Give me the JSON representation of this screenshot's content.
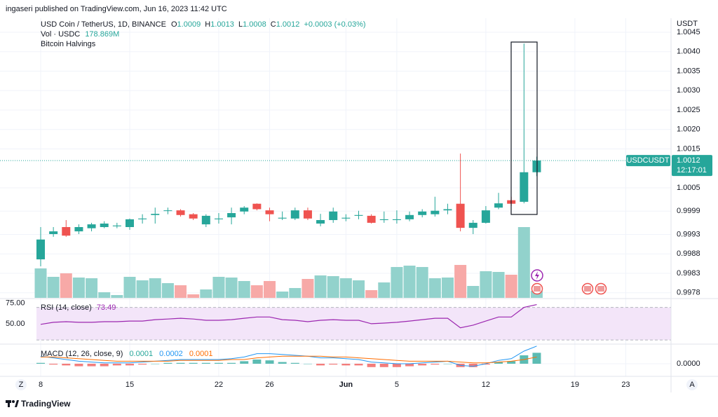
{
  "header": "ingaseri published on TradingView.com, Jun 16, 2023 11:42 UTC",
  "brand": "TradingView",
  "scale_buttons": [
    "Z",
    "A"
  ],
  "chart_data": [
    {
      "type": "candlestick",
      "title": "USD Coin / TetherUS, 1D, BINANCE",
      "ohlc_labels": [
        {
          "label": "O",
          "value": 1.0009
        },
        {
          "label": "H",
          "value": 1.0013
        },
        {
          "label": "L",
          "value": 1.0008
        },
        {
          "label": "C",
          "value": 1.0012
        }
      ],
      "change": "+0.0003 (+0.03%)",
      "volume_label": "Vol · USDC",
      "volume_value": "178.869M",
      "indicator": "Bitcoin Halvings",
      "y_unit": "USDT",
      "categories": [
        "8",
        null,
        null,
        null,
        null,
        null,
        null,
        "15",
        null,
        null,
        null,
        null,
        null,
        null,
        "22",
        null,
        null,
        null,
        "26",
        null,
        null,
        null,
        null,
        null,
        "Jun",
        null,
        null,
        null,
        "5",
        null,
        null,
        null,
        null,
        null,
        null,
        "12",
        null,
        null,
        null,
        null,
        null,
        null,
        "19",
        null,
        null,
        null,
        "23"
      ],
      "open": [
        0.99866,
        0.99931,
        0.99949,
        0.99938,
        0.99946,
        0.99949,
        0.99951,
        0.99949,
        0.99969,
        0.9998,
        0.99991,
        0.99992,
        0.99982,
        0.99956,
        0.99969,
        0.99974,
        0.99989,
        1.00009,
        0.99992,
        0.99971,
        0.99971,
        0.99992,
        0.99958,
        0.99967,
        0.99971,
        0.99978,
        0.99978,
        0.99967,
        0.99967,
        0.99969,
        0.9998,
        0.99982,
        0.99992,
        1.00009,
        0.99947,
        0.9996,
        0.99999,
        1.00018,
        1.00014,
        1.0009,
        null,
        null,
        null,
        null,
        null,
        null,
        null
      ],
      "high": [
        0.99949,
        0.99949,
        0.99967,
        0.99956,
        0.9996,
        0.99964,
        0.9996,
        0.99971,
        0.99982,
        0.99999,
        0.99999,
        0.99995,
        0.99985,
        0.99982,
        0.99985,
        0.99999,
        1.00003,
        1.0001,
        0.99999,
        0.99989,
        0.99999,
        0.99999,
        0.99983,
        0.99999,
        0.99982,
        0.99991,
        0.99982,
        0.99989,
        0.99992,
        0.99989,
        0.99995,
        1.00027,
        1.00009,
        1.00138,
        0.99967,
        1.00003,
        1.00037,
        1.00027,
        1.00421,
        1.0013,
        null,
        null,
        null,
        null,
        null,
        null,
        null
      ],
      "low": [
        0.99848,
        0.99924,
        0.99924,
        0.99931,
        0.99938,
        0.99946,
        0.99946,
        0.99942,
        0.99958,
        0.99958,
        0.99982,
        0.99976,
        0.99967,
        0.99949,
        0.99958,
        0.99956,
        0.99982,
        0.99992,
        0.99964,
        0.99967,
        0.99967,
        0.99967,
        0.99951,
        0.9996,
        0.99964,
        0.99969,
        0.99958,
        0.9996,
        0.99958,
        0.99964,
        0.99974,
        0.99976,
        0.99982,
        0.99938,
        0.99931,
        0.99958,
        0.99995,
        1.00003,
        1.0001,
        1.0008,
        null,
        null,
        null,
        null,
        null,
        null,
        null
      ],
      "close": [
        0.99917,
        0.99938,
        0.99927,
        0.99949,
        0.99956,
        0.99958,
        0.99953,
        0.99969,
        0.99971,
        0.99983,
        0.99992,
        0.9998,
        0.99971,
        0.99978,
        0.99971,
        0.99985,
        0.99999,
        0.99995,
        0.99982,
        0.99973,
        0.99992,
        0.99971,
        0.99967,
        0.99989,
        0.99973,
        0.9998,
        0.9996,
        0.99969,
        0.99969,
        0.9998,
        0.99989,
        0.99991,
        0.99995,
        0.99947,
        0.9996,
        0.99992,
        1.0001,
        1.00009,
        1.0009,
        1.0012,
        null,
        null,
        null,
        null,
        null,
        null,
        null
      ],
      "volume": [
        752,
        537,
        627,
        519,
        501,
        143,
        72,
        537,
        448,
        501,
        376,
        322,
        90,
        215,
        537,
        519,
        430,
        322,
        430,
        161,
        251,
        483,
        573,
        555,
        501,
        448,
        197,
        394,
        788,
        823,
        788,
        501,
        519,
        841,
        304,
        680,
        662,
        591,
        1808,
        178.869,
        null,
        null,
        null,
        null,
        null,
        null,
        null
      ],
      "up_color": "#26a69a",
      "down_color": "#ef5350",
      "volume_up_color": "#92d2cc",
      "volume_down_color": "#f7a9a7",
      "ylim": [
        0.99767,
        1.00486
      ],
      "yticks": [
        1.0045,
        {
          "value": 1.004,
          "label": "1.0040"
        },
        1.0035,
        {
          "value": 1.003,
          "label": "1.0030"
        },
        1.0025,
        {
          "value": 1.002,
          "label": "1.0020"
        },
        1.0015,
        1.0005,
        0.9999,
        0.9993,
        0.9988,
        0.9983,
        0.9978
      ],
      "grid": true,
      "last_price": {
        "label": "USDCUSDT",
        "value": 1.0012,
        "countdown": "12:17:01"
      }
    },
    {
      "type": "line",
      "title": "RSI (14, close)",
      "value_label": 73.49,
      "values": [
        49.2,
        51.7,
        52.5,
        51.7,
        51.7,
        52.5,
        52.5,
        53.3,
        53.3,
        55,
        55.8,
        56.7,
        55.8,
        54.2,
        54.2,
        55,
        56.7,
        58.3,
        58.3,
        55,
        54.2,
        52.5,
        54.2,
        55,
        54.2,
        54.2,
        50,
        50.8,
        51.7,
        53.3,
        55,
        56.7,
        56.7,
        45,
        48.3,
        53.3,
        58.3,
        58.3,
        70,
        73.49,
        null,
        null,
        null,
        null,
        null,
        null,
        null
      ],
      "color": "#9c27b0",
      "band": [
        30,
        70
      ],
      "band_color": "#f3e5f9",
      "ylim": [
        25,
        80
      ],
      "yticks": [
        {
          "value": 75,
          "label": "75.00"
        },
        {
          "value": 50,
          "label": "50.00"
        }
      ]
    },
    {
      "type": "macd",
      "title": "MACD (12, 26, close, 9)",
      "histogram": {
        "legend": 0.0001,
        "up_color": "#26a69a",
        "down_color": "#ef5350",
        "values": [
          1e-05,
          -1e-05,
          -2e-05,
          -3e-05,
          -3e-05,
          -3e-05,
          -2e-05,
          -2e-05,
          -1e-05,
          0,
          1e-05,
          1e-05,
          1e-05,
          1e-05,
          1e-05,
          1e-05,
          3e-05,
          5e-05,
          4e-05,
          2e-05,
          1e-05,
          0,
          -2e-05,
          -1e-05,
          -2e-05,
          -2e-05,
          -4e-05,
          -4e-05,
          -4e-05,
          -3e-05,
          -2e-05,
          -1e-05,
          0,
          -4e-05,
          -4e-05,
          -1e-05,
          2e-05,
          3e-05,
          0.0001,
          0.00013,
          null,
          null,
          null,
          null,
          null,
          null,
          null
        ]
      },
      "macd": {
        "legend": 0.0002,
        "color": "#2196f3",
        "values": [
          9e-05,
          7e-05,
          5e-05,
          3e-05,
          2e-05,
          1e-05,
          1e-05,
          1e-05,
          2e-05,
          3e-05,
          4e-05,
          5e-05,
          5e-05,
          5e-05,
          5e-05,
          6e-05,
          8e-05,
          0.00012,
          0.00012,
          0.00011,
          0.0001,
          9e-05,
          7e-05,
          7e-05,
          6e-05,
          5e-05,
          2e-05,
          1e-05,
          0,
          0,
          1e-05,
          2e-05,
          3e-05,
          -2e-05,
          -3e-05,
          0,
          4e-05,
          6e-05,
          0.00015,
          0.00021,
          null,
          null,
          null,
          null,
          null,
          null,
          null
        ]
      },
      "signal": {
        "legend": 0.0001,
        "color": "#ff6d00",
        "values": [
          8e-05,
          8e-05,
          7e-05,
          6e-05,
          5e-05,
          4e-05,
          3e-05,
          3e-05,
          3e-05,
          3e-05,
          3e-05,
          4e-05,
          4e-05,
          4e-05,
          4e-05,
          5e-05,
          5e-05,
          7e-05,
          8e-05,
          9e-05,
          9e-05,
          9e-05,
          9e-05,
          8e-05,
          8e-05,
          7e-05,
          6e-05,
          5e-05,
          4e-05,
          3e-05,
          3e-05,
          3e-05,
          3e-05,
          2e-05,
          1e-05,
          1e-05,
          2e-05,
          3e-05,
          5e-05,
          8e-05,
          null,
          null,
          null,
          null,
          null,
          null,
          null
        ]
      },
      "ylim": [
        -0.00015,
        0.000233
      ],
      "yticks": [
        {
          "value": 0,
          "label": "0.0000"
        }
      ]
    }
  ]
}
